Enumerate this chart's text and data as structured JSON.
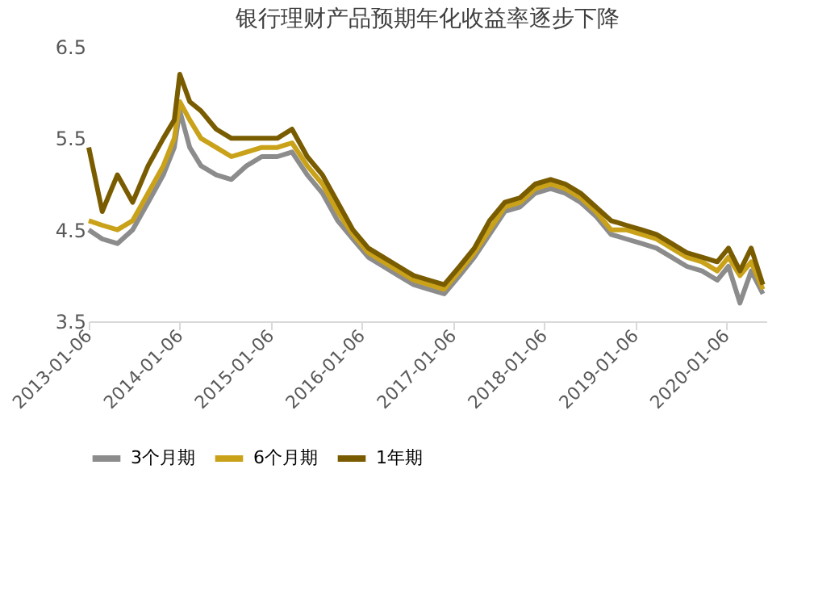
{
  "chart_data": {
    "type": "line",
    "title": "银行理财产品预期年化收益率逐步下降",
    "x": [
      "2013-01-06",
      "2013-03-01",
      "2013-05-01",
      "2013-07-01",
      "2013-09-01",
      "2013-11-01",
      "2013-12-15",
      "2014-01-06",
      "2014-02-15",
      "2014-04-01",
      "2014-06-01",
      "2014-08-01",
      "2014-10-01",
      "2014-12-01",
      "2015-02-01",
      "2015-04-01",
      "2015-06-01",
      "2015-08-01",
      "2015-10-01",
      "2015-12-01",
      "2016-02-01",
      "2016-04-01",
      "2016-06-01",
      "2016-08-01",
      "2016-10-01",
      "2016-12-01",
      "2017-02-01",
      "2017-04-01",
      "2017-06-01",
      "2017-08-01",
      "2017-10-01",
      "2017-12-01",
      "2018-02-01",
      "2018-04-01",
      "2018-06-01",
      "2018-08-01",
      "2018-10-01",
      "2018-12-01",
      "2019-02-01",
      "2019-04-01",
      "2019-06-01",
      "2019-08-01",
      "2019-10-01",
      "2019-12-01",
      "2020-01-15",
      "2020-03-01",
      "2020-04-15",
      "2020-06-01"
    ],
    "series": [
      {
        "name": "3个月期",
        "color": "#8c8c8c",
        "values": [
          4.5,
          4.4,
          4.35,
          4.5,
          4.8,
          5.1,
          5.4,
          5.8,
          5.4,
          5.2,
          5.1,
          5.05,
          5.2,
          5.3,
          5.3,
          5.35,
          5.1,
          4.9,
          4.6,
          4.4,
          4.2,
          4.1,
          4.0,
          3.9,
          3.85,
          3.8,
          4.0,
          4.2,
          4.45,
          4.7,
          4.75,
          4.9,
          4.95,
          4.9,
          4.8,
          4.65,
          4.45,
          4.4,
          4.35,
          4.3,
          4.2,
          4.1,
          4.05,
          3.95,
          4.1,
          3.7,
          4.05,
          3.8
        ]
      },
      {
        "name": "6个月期",
        "color": "#c9a21a",
        "values": [
          4.6,
          4.55,
          4.5,
          4.6,
          4.9,
          5.2,
          5.5,
          5.9,
          5.7,
          5.5,
          5.4,
          5.3,
          5.35,
          5.4,
          5.4,
          5.45,
          5.2,
          5.0,
          4.7,
          4.45,
          4.25,
          4.15,
          4.05,
          3.95,
          3.9,
          3.85,
          4.05,
          4.25,
          4.5,
          4.75,
          4.8,
          4.95,
          5.0,
          4.95,
          4.85,
          4.7,
          4.5,
          4.5,
          4.45,
          4.4,
          4.3,
          4.2,
          4.15,
          4.05,
          4.2,
          4.0,
          4.15,
          3.85
        ]
      },
      {
        "name": "1年期",
        "color": "#7a5c00",
        "values": [
          5.4,
          4.7,
          5.1,
          4.8,
          5.2,
          5.5,
          5.7,
          6.2,
          5.9,
          5.8,
          5.6,
          5.5,
          5.5,
          5.5,
          5.5,
          5.6,
          5.3,
          5.1,
          4.8,
          4.5,
          4.3,
          4.2,
          4.1,
          4.0,
          3.95,
          3.9,
          4.1,
          4.3,
          4.6,
          4.8,
          4.85,
          5.0,
          5.05,
          5.0,
          4.9,
          4.75,
          4.6,
          4.55,
          4.5,
          4.45,
          4.35,
          4.25,
          4.2,
          4.15,
          4.3,
          4.05,
          4.3,
          3.9
        ]
      }
    ],
    "xlim": [
      "2013-01-06",
      "2020-06-15"
    ],
    "xticks": [
      "2013-01-06",
      "2014-01-06",
      "2015-01-06",
      "2016-01-06",
      "2017-01-06",
      "2018-01-06",
      "2019-01-06",
      "2020-01-06"
    ],
    "ylim": [
      3.5,
      6.5
    ],
    "yticks": [
      3.5,
      4.5,
      5.5,
      6.5
    ],
    "grid": false,
    "legend": "bottom",
    "marker": "none",
    "line_style": "solid"
  }
}
